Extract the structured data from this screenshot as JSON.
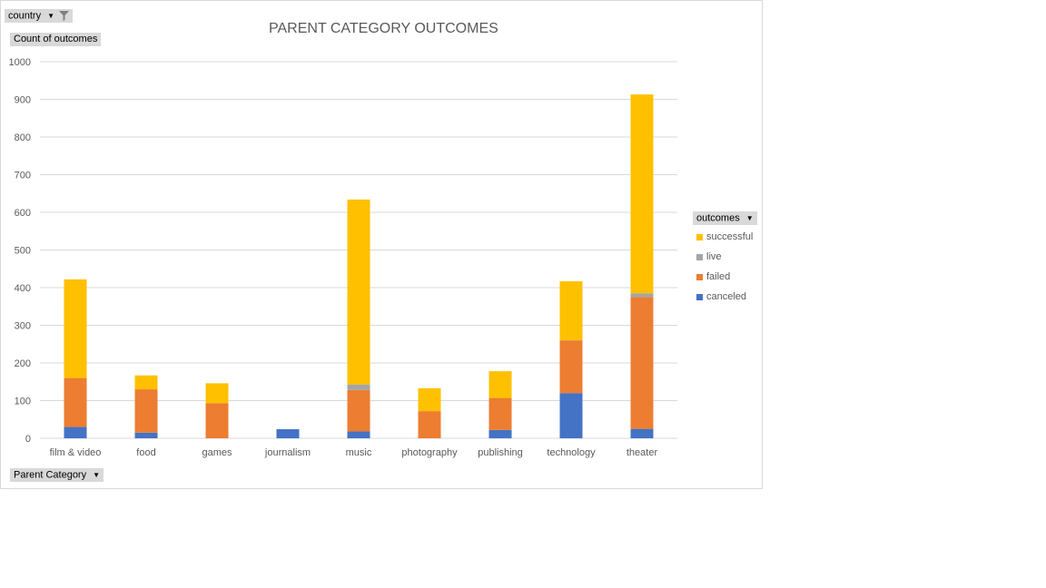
{
  "filters": {
    "country_label": "country",
    "values_label": "Count of outcomes",
    "axis_field_label": "Parent Category",
    "legend_field_label": "outcomes"
  },
  "colors": {
    "canceled": "#4472c4",
    "failed": "#ed7d31",
    "live": "#a5a5a5",
    "successful": "#ffc000",
    "grid": "#d9d9d9",
    "axis_text": "#595959"
  },
  "chart_data": {
    "type": "bar",
    "stacked": true,
    "title": "PARENT CATEGORY OUTCOMES",
    "xlabel": "",
    "ylabel": "",
    "ylim": [
      0,
      1000
    ],
    "yticks": [
      0,
      100,
      200,
      300,
      400,
      500,
      600,
      700,
      800,
      900,
      1000
    ],
    "grid": true,
    "legend_position": "right",
    "categories": [
      "film & video",
      "food",
      "games",
      "journalism",
      "music",
      "photography",
      "publishing",
      "technology",
      "theater"
    ],
    "series": [
      {
        "name": "canceled",
        "values": [
          30,
          15,
          0,
          24,
          18,
          0,
          22,
          120,
          25
        ]
      },
      {
        "name": "failed",
        "values": [
          130,
          115,
          93,
          0,
          110,
          72,
          85,
          140,
          350
        ]
      },
      {
        "name": "live",
        "values": [
          0,
          0,
          0,
          0,
          15,
          0,
          0,
          0,
          10
        ]
      },
      {
        "name": "successful",
        "values": [
          262,
          37,
          53,
          0,
          491,
          61,
          71,
          157,
          528
        ]
      }
    ]
  }
}
